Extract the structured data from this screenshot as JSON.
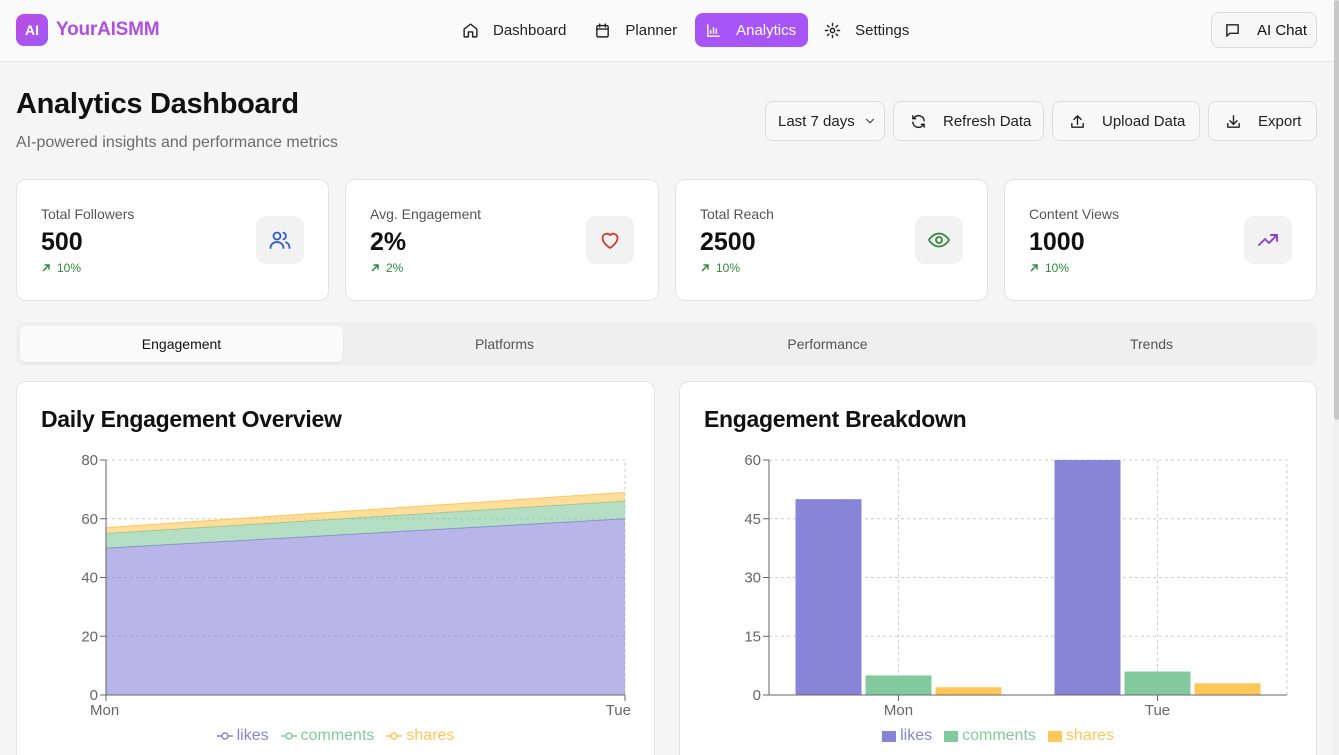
{
  "app": {
    "logo_badge": "AI",
    "name": "YourAISMM"
  },
  "nav": [
    {
      "label": "Dashboard",
      "icon": "home-icon"
    },
    {
      "label": "Planner",
      "icon": "calendar-icon"
    },
    {
      "label": "Analytics",
      "icon": "bar-chart-icon",
      "active": true
    },
    {
      "label": "Settings",
      "icon": "gear-icon"
    }
  ],
  "ai_chat": {
    "label": "AI Chat"
  },
  "header": {
    "title": "Analytics Dashboard",
    "subtitle": "AI-powered insights and performance metrics"
  },
  "actions": {
    "range": "Last 7 days",
    "refresh": "Refresh Data",
    "upload": "Upload Data",
    "export": "Export"
  },
  "cards": [
    {
      "label": "Total Followers",
      "value": "500",
      "trend": "10%",
      "icon": "users-icon",
      "icon_color": "#2b59d9"
    },
    {
      "label": "Avg. Engagement",
      "value": "2%",
      "trend": "2%",
      "icon": "heart-icon",
      "icon_color": "#d23b30"
    },
    {
      "label": "Total Reach",
      "value": "2500",
      "trend": "10%",
      "icon": "eye-icon",
      "icon_color": "#2e8b3a"
    },
    {
      "label": "Content Views",
      "value": "1000",
      "trend": "10%",
      "icon": "trending-up-icon",
      "icon_color": "#8a3fd6"
    }
  ],
  "tabs": [
    "Engagement",
    "Platforms",
    "Performance",
    "Trends"
  ],
  "colors": {
    "likes": "#8884d8",
    "comments": "#82ca9d",
    "shares": "#ffc658",
    "accent": "#a855f7"
  },
  "chart_data": [
    {
      "type": "area",
      "title": "Daily Engagement Overview",
      "stacked": true,
      "categories": [
        "Mon",
        "Tue"
      ],
      "series": [
        {
          "name": "likes",
          "values": [
            50,
            60
          ]
        },
        {
          "name": "comments",
          "values": [
            5,
            6
          ]
        },
        {
          "name": "shares",
          "values": [
            2,
            3
          ]
        }
      ],
      "ylim": [
        0,
        80
      ],
      "yticks": [
        0,
        20,
        40,
        60,
        80
      ],
      "legend": "bottom"
    },
    {
      "type": "bar",
      "title": "Engagement Breakdown",
      "categories": [
        "Mon",
        "Tue"
      ],
      "series": [
        {
          "name": "likes",
          "values": [
            50,
            60
          ]
        },
        {
          "name": "comments",
          "values": [
            5,
            6
          ]
        },
        {
          "name": "shares",
          "values": [
            2,
            3
          ]
        }
      ],
      "ylim": [
        0,
        60
      ],
      "yticks": [
        0,
        15,
        30,
        45,
        60
      ],
      "legend": "bottom"
    }
  ]
}
